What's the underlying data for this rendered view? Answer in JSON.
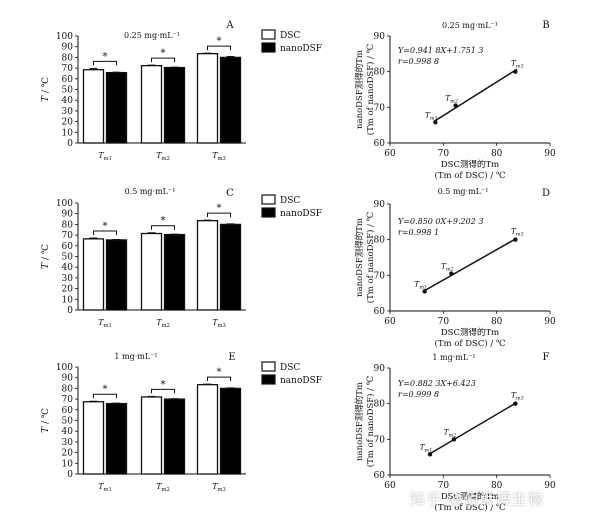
{
  "chart_data": [
    {
      "panel": "A",
      "type": "bar",
      "title": "0.25 mg·mL⁻¹",
      "ylabel": "T / ℃",
      "ylim": [
        0,
        100
      ],
      "yticks": [
        0,
        10,
        20,
        30,
        40,
        50,
        60,
        70,
        80,
        90,
        100
      ],
      "categories": [
        "Tm1",
        "Tm2",
        "Tm3"
      ],
      "series": [
        {
          "name": "DSC",
          "values": [
            68.5,
            72.3,
            83.5
          ],
          "errors": [
            1.2,
            0.5,
            0.5
          ],
          "color": "#ffffff"
        },
        {
          "name": "nanoDSF",
          "values": [
            65.8,
            70.5,
            80.0
          ],
          "errors": [
            0.4,
            0.4,
            0.8
          ],
          "color": "#000000"
        }
      ],
      "significance": [
        "*",
        "*",
        "*"
      ],
      "legend": [
        "DSC",
        "nanoDSF"
      ]
    },
    {
      "panel": "B",
      "type": "scatter",
      "title": "0.25 mg·mL⁻¹",
      "xlabel_cn": "DSC测得的Tm",
      "xlabel_en": "(Tm of DSC) / ℃",
      "ylabel_cn": "nanoDSF测得的Tm",
      "ylabel_en": "(Tm of nanoDSF) / ℃",
      "xlim": [
        60,
        90
      ],
      "ylim": [
        60,
        90
      ],
      "xticks": [
        60,
        70,
        80,
        90
      ],
      "yticks": [
        60,
        70,
        80,
        90
      ],
      "points": [
        {
          "label": "Tm1",
          "x": 68.5,
          "y": 65.8
        },
        {
          "label": "Tm2",
          "x": 72.3,
          "y": 70.5
        },
        {
          "label": "Tm3",
          "x": 83.5,
          "y": 80.0
        }
      ],
      "fit": {
        "slope": 0.9418,
        "intercept": 1.7513
      },
      "equation": "Y=0.941 8X+1.751 3",
      "r": "r=0.998 8"
    },
    {
      "panel": "C",
      "type": "bar",
      "title": "0.5 mg·mL⁻¹",
      "ylabel": "T / ℃",
      "ylim": [
        0,
        100
      ],
      "yticks": [
        0,
        10,
        20,
        30,
        40,
        50,
        60,
        70,
        80,
        90,
        100
      ],
      "categories": [
        "Tm1",
        "Tm2",
        "Tm3"
      ],
      "series": [
        {
          "name": "DSC",
          "values": [
            66.5,
            71.5,
            83.5
          ],
          "errors": [
            0.8,
            0.7,
            0.5
          ],
          "color": "#ffffff"
        },
        {
          "name": "nanoDSF",
          "values": [
            65.5,
            70.5,
            80.0
          ],
          "errors": [
            0.4,
            0.4,
            0.5
          ],
          "color": "#000000"
        }
      ],
      "significance": [
        "*",
        "*",
        "*"
      ],
      "legend": [
        "DSC",
        "nanoDSF"
      ]
    },
    {
      "panel": "D",
      "type": "scatter",
      "title": "0.5 mg·mL⁻¹",
      "xlabel_cn": "DSC测得的Tm",
      "xlabel_en": "(Tm of DSC) / ℃",
      "ylabel_cn": "nanoDSF测得的Tm",
      "ylabel_en": "(Tm of nanoDSF) / ℃",
      "xlim": [
        60,
        90
      ],
      "ylim": [
        60,
        90
      ],
      "xticks": [
        60,
        70,
        80,
        90
      ],
      "yticks": [
        60,
        70,
        80,
        90
      ],
      "points": [
        {
          "label": "Tm1",
          "x": 66.5,
          "y": 65.5
        },
        {
          "label": "Tm2",
          "x": 71.5,
          "y": 70.5
        },
        {
          "label": "Tm3",
          "x": 83.5,
          "y": 80.0
        }
      ],
      "fit": {
        "slope": 0.85,
        "intercept": 9.2023
      },
      "equation": "Y=0.850 0X+9.202 3",
      "r": "r=0.998 1"
    },
    {
      "panel": "E",
      "type": "bar",
      "title": "1 mg·mL⁻¹",
      "ylabel": "T / ℃",
      "ylim": [
        0,
        100
      ],
      "yticks": [
        0,
        10,
        20,
        30,
        40,
        50,
        60,
        70,
        80,
        90,
        100
      ],
      "categories": [
        "Tm1",
        "Tm2",
        "Tm3"
      ],
      "series": [
        {
          "name": "DSC",
          "values": [
            67.5,
            72.0,
            83.5
          ],
          "errors": [
            0.5,
            0.5,
            0.5
          ],
          "color": "#ffffff"
        },
        {
          "name": "nanoDSF",
          "values": [
            65.8,
            70.0,
            80.0
          ],
          "errors": [
            0.4,
            0.4,
            0.5
          ],
          "color": "#000000"
        }
      ],
      "significance": [
        "*",
        "*",
        "*"
      ],
      "legend": [
        "DSC",
        "nanoDSF"
      ]
    },
    {
      "panel": "F",
      "type": "scatter",
      "title": "1 mg·mL⁻¹",
      "xlabel_cn": "DSC测得的Tm",
      "xlabel_en": "(Tm of DSC) / ℃",
      "ylabel_cn": "nanoDSF测得的Tm",
      "ylabel_en": "(Tm of nanoDSF) / ℃",
      "xlim": [
        60,
        90
      ],
      "ylim": [
        60,
        90
      ],
      "xticks": [
        60,
        70,
        80,
        90
      ],
      "yticks": [
        60,
        70,
        80,
        90
      ],
      "points": [
        {
          "label": "Tm1",
          "x": 67.5,
          "y": 65.8
        },
        {
          "label": "Tm2",
          "x": 72.0,
          "y": 70.0
        },
        {
          "label": "Tm3",
          "x": 83.5,
          "y": 80.0
        }
      ],
      "fit": {
        "slope": 0.8823,
        "intercept": 6.423
      },
      "equation": "Y=0.882 3X+6.423",
      "r": "r=0.999 8"
    }
  ],
  "watermark": "知乎 @佰莱博生物"
}
